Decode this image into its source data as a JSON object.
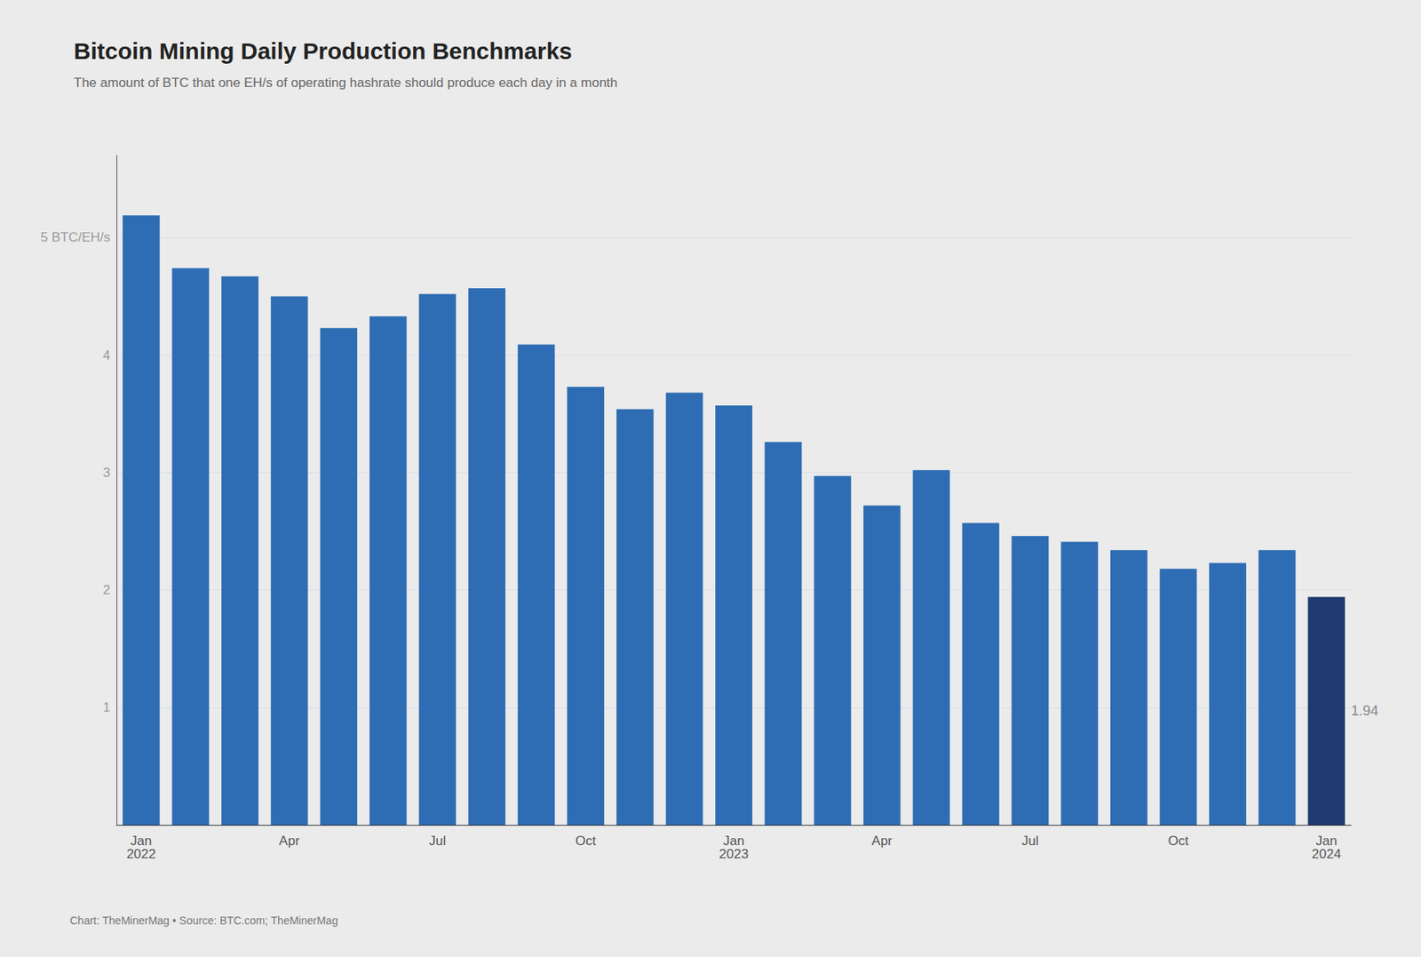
{
  "chart_data": {
    "type": "bar",
    "title": "Bitcoin Mining Daily Production Benchmarks",
    "subtitle": "The amount of BTC that one EH/s of operating hashrate should produce each day in a month",
    "footer": "Chart: TheMinerMag • Source: BTC.com; TheMinerMag",
    "categories": [
      "Jan\n2022",
      null,
      null,
      "Apr",
      null,
      null,
      "Jul",
      null,
      null,
      "Oct",
      null,
      null,
      "Jan\n2023",
      null,
      null,
      "Apr",
      null,
      null,
      "Jul",
      null,
      null,
      "Oct",
      null,
      null,
      "Jan\n2024"
    ],
    "values": [
      5.19,
      4.74,
      4.67,
      4.5,
      4.23,
      4.33,
      4.52,
      4.57,
      4.09,
      3.73,
      3.54,
      3.68,
      3.57,
      3.26,
      2.97,
      2.72,
      3.02,
      2.57,
      2.46,
      2.41,
      2.34,
      2.18,
      2.23,
      2.34,
      1.94
    ],
    "colors": [
      "#2e6db4",
      "#2e6db4",
      "#2e6db4",
      "#2e6db4",
      "#2e6db4",
      "#2e6db4",
      "#2e6db4",
      "#2e6db4",
      "#2e6db4",
      "#2e6db4",
      "#2e6db4",
      "#2e6db4",
      "#2e6db4",
      "#2e6db4",
      "#2e6db4",
      "#2e6db4",
      "#2e6db4",
      "#2e6db4",
      "#2e6db4",
      "#2e6db4",
      "#2e6db4",
      "#2e6db4",
      "#2e6db4",
      "#2e6db4",
      "#1e3a6e"
    ],
    "annotations": [
      {
        "text": "1.94",
        "x": "Jan\n2024",
        "y": 1.94
      }
    ],
    "ylim": [
      0,
      5.7
    ],
    "yticks": [
      1,
      2,
      3,
      4,
      {
        "value": 5,
        "label": "5 BTC/EH/s"
      }
    ],
    "grid": true
  }
}
